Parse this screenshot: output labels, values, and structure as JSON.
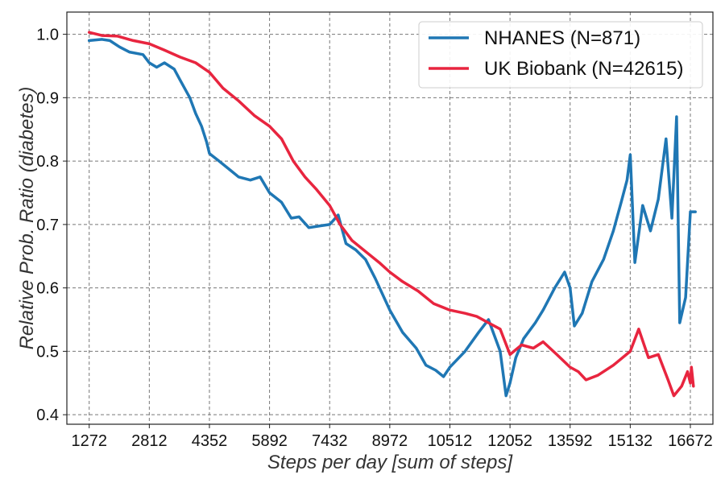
{
  "chart_data": {
    "type": "line",
    "title": "",
    "xlabel": "Steps per day [sum of steps]",
    "ylabel": "Relative Prob. Ratio (diabetes)",
    "xlim": [
      700,
      17250
    ],
    "ylim": [
      0.385,
      1.035
    ],
    "grid": true,
    "legend_position": "top-right",
    "x_ticks": [
      1272,
      2812,
      4352,
      5892,
      7432,
      8972,
      10512,
      12052,
      13592,
      15132,
      16672
    ],
    "y_ticks": [
      0.4,
      0.5,
      0.6,
      0.7,
      0.8,
      0.9,
      1.0
    ],
    "series": [
      {
        "name": "NHANES (N=871)",
        "color": "#1f77b4",
        "points": [
          [
            1272,
            0.99
          ],
          [
            1600,
            0.992
          ],
          [
            1800,
            0.99
          ],
          [
            2050,
            0.98
          ],
          [
            2300,
            0.972
          ],
          [
            2650,
            0.968
          ],
          [
            2812,
            0.955
          ],
          [
            3000,
            0.948
          ],
          [
            3200,
            0.955
          ],
          [
            3450,
            0.945
          ],
          [
            3600,
            0.928
          ],
          [
            3850,
            0.9
          ],
          [
            4000,
            0.875
          ],
          [
            4150,
            0.855
          ],
          [
            4280,
            0.83
          ],
          [
            4352,
            0.812
          ],
          [
            4600,
            0.8
          ],
          [
            4900,
            0.785
          ],
          [
            5100,
            0.775
          ],
          [
            5400,
            0.77
          ],
          [
            5650,
            0.775
          ],
          [
            5892,
            0.75
          ],
          [
            6200,
            0.735
          ],
          [
            6450,
            0.71
          ],
          [
            6650,
            0.712
          ],
          [
            6900,
            0.695
          ],
          [
            7200,
            0.698
          ],
          [
            7432,
            0.7
          ],
          [
            7650,
            0.715
          ],
          [
            7850,
            0.67
          ],
          [
            8100,
            0.66
          ],
          [
            8350,
            0.645
          ],
          [
            8600,
            0.615
          ],
          [
            8972,
            0.565
          ],
          [
            9300,
            0.53
          ],
          [
            9650,
            0.505
          ],
          [
            9900,
            0.478
          ],
          [
            10150,
            0.47
          ],
          [
            10350,
            0.46
          ],
          [
            10512,
            0.475
          ],
          [
            10900,
            0.5
          ],
          [
            11250,
            0.53
          ],
          [
            11500,
            0.55
          ],
          [
            11800,
            0.5
          ],
          [
            11950,
            0.43
          ],
          [
            12052,
            0.45
          ],
          [
            12200,
            0.49
          ],
          [
            12400,
            0.52
          ],
          [
            12700,
            0.545
          ],
          [
            12900,
            0.565
          ],
          [
            13200,
            0.6
          ],
          [
            13450,
            0.625
          ],
          [
            13592,
            0.6
          ],
          [
            13700,
            0.54
          ],
          [
            13900,
            0.56
          ],
          [
            14150,
            0.61
          ],
          [
            14450,
            0.645
          ],
          [
            14700,
            0.69
          ],
          [
            14900,
            0.735
          ],
          [
            15050,
            0.77
          ],
          [
            15132,
            0.81
          ],
          [
            15250,
            0.64
          ],
          [
            15450,
            0.73
          ],
          [
            15650,
            0.69
          ],
          [
            15850,
            0.74
          ],
          [
            16050,
            0.835
          ],
          [
            16200,
            0.71
          ],
          [
            16320,
            0.87
          ],
          [
            16400,
            0.545
          ],
          [
            16550,
            0.585
          ],
          [
            16672,
            0.72
          ],
          [
            16800,
            0.72
          ]
        ]
      },
      {
        "name": "UK Biobank (N=42615)",
        "color": "#e8253f",
        "points": [
          [
            1272,
            1.003
          ],
          [
            1600,
            0.998
          ],
          [
            2000,
            0.997
          ],
          [
            2400,
            0.99
          ],
          [
            2812,
            0.985
          ],
          [
            3200,
            0.975
          ],
          [
            3600,
            0.964
          ],
          [
            4000,
            0.955
          ],
          [
            4352,
            0.94
          ],
          [
            4700,
            0.915
          ],
          [
            5100,
            0.895
          ],
          [
            5500,
            0.872
          ],
          [
            5892,
            0.855
          ],
          [
            6200,
            0.835
          ],
          [
            6500,
            0.8
          ],
          [
            6800,
            0.775
          ],
          [
            7100,
            0.755
          ],
          [
            7432,
            0.73
          ],
          [
            7700,
            0.7
          ],
          [
            8000,
            0.675
          ],
          [
            8400,
            0.655
          ],
          [
            8700,
            0.64
          ],
          [
            8972,
            0.625
          ],
          [
            9300,
            0.61
          ],
          [
            9700,
            0.595
          ],
          [
            10100,
            0.575
          ],
          [
            10512,
            0.565
          ],
          [
            10900,
            0.56
          ],
          [
            11200,
            0.555
          ],
          [
            11500,
            0.545
          ],
          [
            11800,
            0.535
          ],
          [
            12052,
            0.495
          ],
          [
            12350,
            0.51
          ],
          [
            12650,
            0.505
          ],
          [
            12900,
            0.515
          ],
          [
            13250,
            0.495
          ],
          [
            13592,
            0.475
          ],
          [
            13800,
            0.468
          ],
          [
            14000,
            0.455
          ],
          [
            14300,
            0.462
          ],
          [
            14700,
            0.478
          ],
          [
            15132,
            0.5
          ],
          [
            15350,
            0.535
          ],
          [
            15600,
            0.49
          ],
          [
            15850,
            0.495
          ],
          [
            16100,
            0.455
          ],
          [
            16250,
            0.43
          ],
          [
            16450,
            0.445
          ],
          [
            16600,
            0.468
          ],
          [
            16672,
            0.45
          ],
          [
            16700,
            0.475
          ],
          [
            16750,
            0.445
          ]
        ]
      }
    ]
  }
}
